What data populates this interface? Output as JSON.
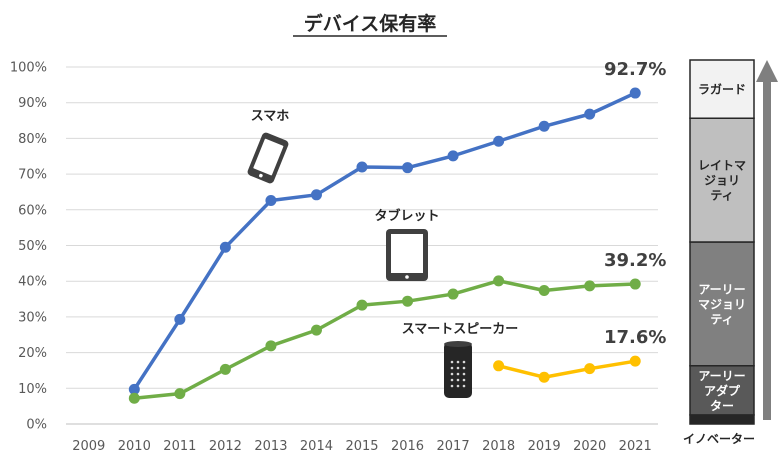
{
  "chart_data": {
    "type": "line",
    "title": "デバイス保有率",
    "x": [
      "2009",
      "2010",
      "2011",
      "2012",
      "2013",
      "2014",
      "2015",
      "2016",
      "2017",
      "2018",
      "2019",
      "2020",
      "2021"
    ],
    "ylim": [
      0,
      100
    ],
    "yticks": [
      "0%",
      "10%",
      "20%",
      "30%",
      "40%",
      "50%",
      "60%",
      "70%",
      "80%",
      "90%",
      "100%"
    ],
    "grid": true,
    "series": [
      {
        "name": "スマホ",
        "color": "#4472c4",
        "icon": "smartphone-icon",
        "values": [
          null,
          9.7,
          29.3,
          49.5,
          62.6,
          64.2,
          72.0,
          71.8,
          75.1,
          79.2,
          83.4,
          86.8,
          92.7
        ],
        "end_label": "92.7%"
      },
      {
        "name": "タブレット",
        "color": "#70ad47",
        "icon": "tablet-icon",
        "values": [
          null,
          7.2,
          8.5,
          15.3,
          21.9,
          26.3,
          33.3,
          34.4,
          36.4,
          40.1,
          37.4,
          38.7,
          39.2
        ],
        "end_label": "39.2%"
      },
      {
        "name": "スマートスピーカー",
        "color": "#ffc000",
        "icon": "smart-speaker-icon",
        "values": [
          null,
          null,
          null,
          null,
          null,
          null,
          null,
          null,
          null,
          16.3,
          13.1,
          15.5,
          17.6
        ],
        "end_label": "17.6%"
      }
    ]
  },
  "adoption_bar": {
    "segments": [
      {
        "name": "イノベーター",
        "share": 2.5,
        "color": "#262626",
        "text_color": "#ffffff",
        "lines": []
      },
      {
        "name": "アーリーアダプター",
        "share": 13.5,
        "color": "#595959",
        "text_color": "#ffffff",
        "lines": [
          "アーリー",
          "アダプ",
          "ター"
        ]
      },
      {
        "name": "アーリーマジョリティ",
        "share": 34,
        "color": "#808080",
        "text_color": "#ffffff",
        "lines": [
          "アーリー",
          "マジョリ",
          "ティ"
        ]
      },
      {
        "name": "レイトマジョリティ",
        "share": 34,
        "color": "#bfbfbf",
        "text_color": "#262626",
        "lines": [
          "レイトマ",
          "ジョリ",
          "ティ"
        ]
      },
      {
        "name": "ラガード",
        "share": 16,
        "color": "#f2f2f2",
        "text_color": "#262626",
        "lines": [
          "ラガード"
        ]
      }
    ],
    "bottom_label": "イノベーター",
    "arrow_color": "#7f7f7f"
  }
}
